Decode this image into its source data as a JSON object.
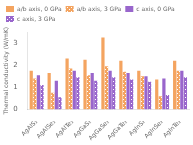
{
  "chart_data": {
    "type": "bar",
    "categories": [
      "AgAlS₂",
      "AgAlSe₂",
      "AgAlTe₂",
      "AgGaS₂",
      "AgGaSe₂",
      "AgGaTe₂",
      "AgInS₂",
      "AgInSe₂",
      "AgInTe₂"
    ],
    "series": [
      {
        "name": "a/b axis, 0 GPa",
        "color": "#f4a460",
        "values": [
          1.75,
          1.65,
          2.3,
          2.25,
          3.25,
          2.2,
          1.75,
          1.35,
          2.2
        ]
      },
      {
        "name": "a/b axis, 3 GPa",
        "color": "#f4a460",
        "values": [
          1.4,
          0.75,
          1.85,
          1.55,
          1.95,
          1.7,
          1.5,
          0.6,
          1.75
        ]
      },
      {
        "name": "c axis, 0 GPa",
        "color": "#9966cc",
        "values": [
          1.55,
          1.3,
          1.75,
          1.65,
          1.75,
          1.65,
          1.5,
          1.4,
          1.75
        ]
      },
      {
        "name": "c axis, 3 GPa",
        "color": "#9966cc",
        "values": [
          1.1,
          0.55,
          1.45,
          1.3,
          1.45,
          1.35,
          1.25,
          0.65,
          1.45
        ]
      }
    ],
    "ylabel": "Thermal conductivity (W/mK)",
    "ylim": [
      0,
      3.5
    ],
    "yticks": [
      0,
      1,
      2,
      3
    ],
    "grid": false,
    "legend": "upper left"
  }
}
